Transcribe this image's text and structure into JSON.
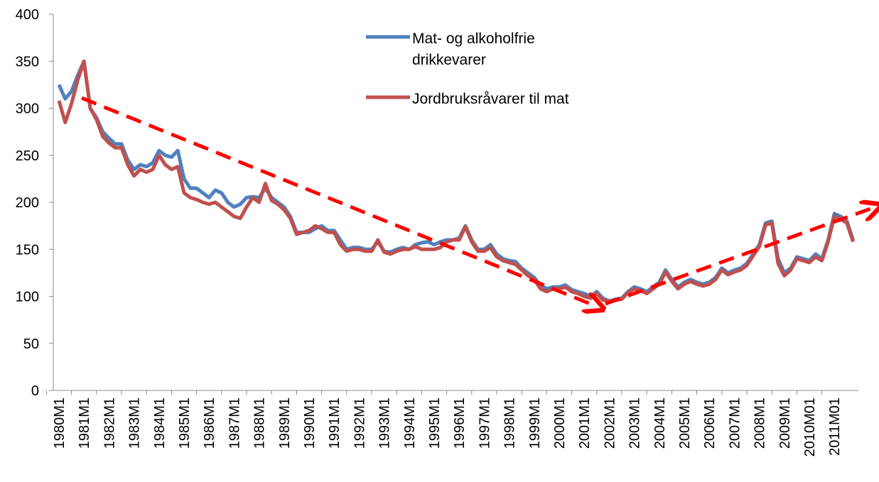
{
  "chart_data": {
    "type": "line",
    "categories": [
      "1980M1",
      null,
      null,
      null,
      "1981M1",
      null,
      null,
      null,
      "1982M1",
      null,
      null,
      null,
      "1983M1",
      null,
      null,
      null,
      "1984M1",
      null,
      null,
      null,
      "1985M1",
      null,
      null,
      null,
      "1986M1",
      null,
      null,
      null,
      "1987M1",
      null,
      null,
      null,
      "1988M1",
      null,
      null,
      null,
      "1989M1",
      null,
      null,
      null,
      "1990M1",
      null,
      null,
      null,
      "1991M1",
      null,
      null,
      null,
      "1992M1",
      null,
      null,
      null,
      "1993M1",
      null,
      null,
      null,
      "1994M1",
      null,
      null,
      null,
      "1995M1",
      null,
      null,
      null,
      "1996M1",
      null,
      null,
      null,
      "1997M1",
      null,
      null,
      null,
      "1998M1",
      null,
      null,
      null,
      "1999M1",
      null,
      null,
      null,
      "2000M1",
      null,
      null,
      null,
      "2001M1",
      null,
      null,
      null,
      "2002M1",
      null,
      null,
      null,
      "2003M1",
      null,
      null,
      null,
      "2004M1",
      null,
      null,
      null,
      "2005M1",
      null,
      null,
      null,
      "2006M1",
      null,
      null,
      null,
      "2007M1",
      null,
      null,
      null,
      "2008M1",
      null,
      null,
      null,
      "2009M1",
      null,
      null,
      null,
      "2010M01",
      null,
      null,
      null,
      "2011M01",
      null,
      null,
      null
    ],
    "series": [
      {
        "name": "Mat- og alkoholfrie drikkevarer",
        "color": "#4f81bd",
        "values": [
          325,
          310,
          318,
          335,
          350,
          300,
          290,
          275,
          268,
          262,
          262,
          245,
          235,
          240,
          238,
          242,
          255,
          250,
          248,
          255,
          225,
          215,
          215,
          210,
          205,
          213,
          210,
          200,
          195,
          198,
          205,
          206,
          205,
          215,
          205,
          200,
          195,
          185,
          168,
          168,
          168,
          172,
          175,
          170,
          170,
          160,
          150,
          152,
          152,
          150,
          150,
          158,
          148,
          147,
          150,
          152,
          150,
          155,
          157,
          158,
          155,
          158,
          160,
          160,
          162,
          175,
          160,
          150,
          150,
          155,
          145,
          140,
          138,
          137,
          130,
          125,
          120,
          112,
          108,
          110,
          110,
          112,
          107,
          105,
          103,
          100,
          105,
          98,
          95,
          97,
          98,
          105,
          110,
          108,
          105,
          110,
          115,
          128,
          118,
          110,
          115,
          118,
          115,
          113,
          115,
          120,
          130,
          125,
          128,
          130,
          135,
          145,
          155,
          178,
          180,
          140,
          125,
          130,
          142,
          140,
          138,
          145,
          140,
          160,
          188,
          185,
          180,
          160
        ]
      },
      {
        "name": "Jordbruksråvarer til mat",
        "color": "#c0504d",
        "values": [
          308,
          285,
          305,
          330,
          350,
          300,
          288,
          270,
          263,
          258,
          258,
          240,
          228,
          235,
          232,
          235,
          250,
          240,
          235,
          238,
          210,
          205,
          203,
          200,
          198,
          200,
          195,
          190,
          185,
          183,
          195,
          205,
          200,
          220,
          202,
          198,
          192,
          183,
          166,
          168,
          170,
          175,
          172,
          168,
          168,
          155,
          148,
          150,
          150,
          148,
          148,
          160,
          147,
          145,
          148,
          150,
          150,
          153,
          150,
          150,
          150,
          152,
          158,
          160,
          160,
          174,
          158,
          148,
          148,
          152,
          142,
          138,
          136,
          134,
          128,
          122,
          118,
          108,
          105,
          108,
          108,
          110,
          105,
          103,
          100,
          98,
          103,
          96,
          95,
          96,
          97,
          104,
          108,
          106,
          103,
          108,
          113,
          126,
          116,
          108,
          113,
          116,
          113,
          111,
          113,
          118,
          128,
          123,
          126,
          128,
          133,
          143,
          153,
          176,
          178,
          135,
          122,
          128,
          140,
          138,
          136,
          142,
          138,
          158,
          185,
          182,
          178,
          158
        ]
      }
    ],
    "ylim": [
      0,
      400
    ],
    "yticks": [
      0,
      50,
      100,
      150,
      200,
      250,
      300,
      350,
      400
    ]
  }
}
